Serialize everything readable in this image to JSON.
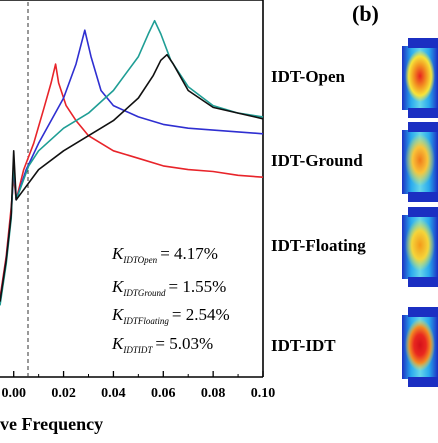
{
  "panel_label": "(b)",
  "xlabel": "ve Frequency",
  "chart_data": {
    "type": "line",
    "x_range": [
      -0.0055,
      0.1
    ],
    "y_range": [
      0,
      1
    ],
    "x_ticks": [
      0.0,
      0.02,
      0.04,
      0.06,
      0.08,
      0.1
    ],
    "x_tick_labels": [
      "0.00",
      "0.02",
      "0.04",
      "0.06",
      "0.08",
      "0.10"
    ],
    "y_axis": "unlabeled",
    "reference_line": {
      "x": 0.0,
      "style": "dashed"
    },
    "annotations": [
      {
        "symbol": "K",
        "subscript": "IDTOpen",
        "value": "= 4.17%"
      },
      {
        "symbol": "K",
        "subscript": "IDTGround",
        "value": "= 1.55%"
      },
      {
        "symbol": "K",
        "subscript": "IDTFloating",
        "value": "= 2.54%"
      },
      {
        "symbol": "K",
        "subscript": "IDTIDT",
        "value": "= 5.03%"
      }
    ],
    "series": [
      {
        "color": "#e8242a",
        "points": [
          [
            -0.0055,
            0.21
          ],
          [
            -0.003,
            0.32
          ],
          [
            -0.001,
            0.45
          ],
          [
            0.0,
            0.53
          ],
          [
            0.001,
            0.47
          ],
          [
            0.004,
            0.55
          ],
          [
            0.008,
            0.62
          ],
          [
            0.012,
            0.71
          ],
          [
            0.015,
            0.78
          ],
          [
            0.0168,
            0.83
          ],
          [
            0.018,
            0.78
          ],
          [
            0.021,
            0.72
          ],
          [
            0.025,
            0.68
          ],
          [
            0.03,
            0.64
          ],
          [
            0.04,
            0.6
          ],
          [
            0.05,
            0.58
          ],
          [
            0.06,
            0.56
          ],
          [
            0.07,
            0.55
          ],
          [
            0.08,
            0.545
          ],
          [
            0.09,
            0.535
          ],
          [
            0.1,
            0.53
          ]
        ]
      },
      {
        "color": "#2f2fd1",
        "points": [
          [
            -0.0055,
            0.2
          ],
          [
            -0.003,
            0.31
          ],
          [
            -0.001,
            0.43
          ],
          [
            0.0,
            0.56
          ],
          [
            0.001,
            0.47
          ],
          [
            0.005,
            0.55
          ],
          [
            0.01,
            0.62
          ],
          [
            0.015,
            0.68
          ],
          [
            0.02,
            0.74
          ],
          [
            0.025,
            0.83
          ],
          [
            0.0285,
            0.92
          ],
          [
            0.031,
            0.85
          ],
          [
            0.035,
            0.76
          ],
          [
            0.04,
            0.72
          ],
          [
            0.05,
            0.69
          ],
          [
            0.06,
            0.67
          ],
          [
            0.07,
            0.66
          ],
          [
            0.08,
            0.655
          ],
          [
            0.09,
            0.65
          ],
          [
            0.1,
            0.645
          ]
        ]
      },
      {
        "color": "#1f9e95",
        "points": [
          [
            -0.0055,
            0.19
          ],
          [
            -0.003,
            0.3
          ],
          [
            -0.001,
            0.42
          ],
          [
            0.0,
            0.57
          ],
          [
            0.001,
            0.47
          ],
          [
            0.006,
            0.56
          ],
          [
            0.01,
            0.6
          ],
          [
            0.02,
            0.66
          ],
          [
            0.03,
            0.7
          ],
          [
            0.04,
            0.76
          ],
          [
            0.05,
            0.85
          ],
          [
            0.054,
            0.91
          ],
          [
            0.0565,
            0.945
          ],
          [
            0.059,
            0.91
          ],
          [
            0.063,
            0.84
          ],
          [
            0.07,
            0.77
          ],
          [
            0.08,
            0.72
          ],
          [
            0.09,
            0.7
          ],
          [
            0.1,
            0.69
          ]
        ]
      },
      {
        "color": "#111111",
        "points": [
          [
            -0.0055,
            0.2
          ],
          [
            -0.003,
            0.31
          ],
          [
            -0.001,
            0.43
          ],
          [
            0.0,
            0.6
          ],
          [
            0.001,
            0.47
          ],
          [
            0.01,
            0.55
          ],
          [
            0.02,
            0.6
          ],
          [
            0.03,
            0.64
          ],
          [
            0.04,
            0.68
          ],
          [
            0.05,
            0.74
          ],
          [
            0.056,
            0.8
          ],
          [
            0.059,
            0.84
          ],
          [
            0.0615,
            0.855
          ],
          [
            0.064,
            0.83
          ],
          [
            0.07,
            0.76
          ],
          [
            0.08,
            0.715
          ],
          [
            0.09,
            0.7
          ],
          [
            0.1,
            0.685
          ]
        ]
      }
    ]
  },
  "legend_modes": [
    {
      "label": "IDT-Open",
      "color": "#e33a2a"
    },
    {
      "label": "IDT-Ground",
      "color": "#f08020"
    },
    {
      "label": "IDT-Floating",
      "color": "#f2b21a"
    },
    {
      "label": "IDT-IDT",
      "color": "#d8141b"
    }
  ]
}
